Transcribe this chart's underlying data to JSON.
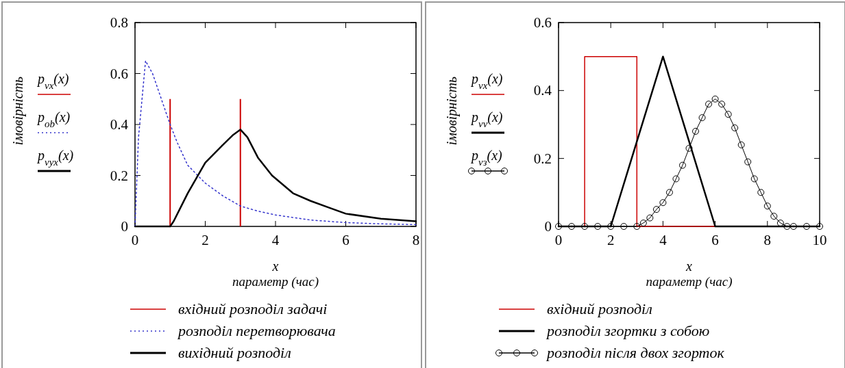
{
  "chart_data": [
    {
      "type": "line",
      "ylabel": "імовірність",
      "xlabel": "x\nпараметр (час)",
      "xlim": [
        0,
        8
      ],
      "ylim": [
        0,
        0.8
      ],
      "xticks": [
        0,
        2,
        4,
        6,
        8
      ],
      "yticks": [
        0,
        0.2,
        0.4,
        0.6,
        0.8
      ],
      "legend": "bottom",
      "annotations": [
        "p$_{vx}$(x)",
        "p$_{ob}$(x)",
        "p$_{vyx}$(x)"
      ],
      "series": [
        {
          "name": "вхідний розподіл задачі",
          "color": "#cc0000",
          "type": "bar",
          "x": [
            1,
            3
          ],
          "values": [
            0.5,
            0.5
          ]
        },
        {
          "name": "розподіл перетворювача",
          "color": "#3333cc",
          "line_style": "dotted",
          "x": [
            0,
            0.1,
            0.3,
            0.5,
            0.75,
            1,
            1.2,
            1.5,
            2,
            2.5,
            3,
            3.5,
            4,
            5,
            6,
            7,
            8
          ],
          "values": [
            0,
            0.35,
            0.65,
            0.6,
            0.5,
            0.4,
            0.33,
            0.24,
            0.17,
            0.12,
            0.08,
            0.06,
            0.045,
            0.025,
            0.015,
            0.01,
            0.007
          ]
        },
        {
          "name": "вихідний розподіл",
          "color": "#000000",
          "x": [
            0,
            1,
            1.1,
            1.5,
            2,
            2.5,
            2.8,
            3,
            3.2,
            3.5,
            3.9,
            4.5,
            5,
            5.5,
            6,
            7,
            8
          ],
          "values": [
            0,
            0,
            0.02,
            0.13,
            0.25,
            0.32,
            0.36,
            0.38,
            0.35,
            0.27,
            0.2,
            0.13,
            0.1,
            0.075,
            0.05,
            0.03,
            0.02
          ]
        }
      ]
    },
    {
      "type": "line",
      "ylabel": "імовірність",
      "xlabel": "x\nпараметр (час)",
      "xlim": [
        0,
        10
      ],
      "ylim": [
        0,
        0.6
      ],
      "xticks": [
        0,
        2,
        4,
        6,
        8,
        10
      ],
      "yticks": [
        0,
        0.2,
        0.4,
        0.6
      ],
      "legend": "bottom",
      "annotations": [
        "p$_{vx}$(x)",
        "p$_{vv}$(x)",
        "p$_{vз}$(x)"
      ],
      "series": [
        {
          "name": "вхідний розподіл",
          "color": "#cc0000",
          "x": [
            0,
            1,
            1,
            3,
            3,
            10
          ],
          "values": [
            0,
            0,
            0.5,
            0.5,
            0,
            0
          ]
        },
        {
          "name": "розподіл згортки з собою",
          "color": "#000000",
          "x": [
            0,
            2,
            4,
            6,
            10
          ],
          "values": [
            0,
            0,
            0.5,
            0,
            0
          ]
        },
        {
          "name": "розподіл після двох згорток",
          "color": "#000000",
          "marker": "circle",
          "x": [
            0,
            0.5,
            1,
            1.5,
            2,
            2.5,
            3,
            3.25,
            3.5,
            3.75,
            4,
            4.25,
            4.5,
            4.75,
            5,
            5.25,
            5.5,
            5.75,
            6,
            6.25,
            6.5,
            6.75,
            7,
            7.25,
            7.5,
            7.75,
            8,
            8.25,
            8.5,
            8.75,
            9,
            9.5,
            10
          ],
          "values": [
            0,
            0,
            0,
            0,
            0,
            0,
            0,
            0.01,
            0.025,
            0.05,
            0.07,
            0.1,
            0.14,
            0.18,
            0.23,
            0.28,
            0.32,
            0.36,
            0.375,
            0.36,
            0.33,
            0.29,
            0.24,
            0.19,
            0.14,
            0.1,
            0.06,
            0.03,
            0.01,
            0,
            0,
            0,
            0
          ]
        }
      ]
    }
  ]
}
